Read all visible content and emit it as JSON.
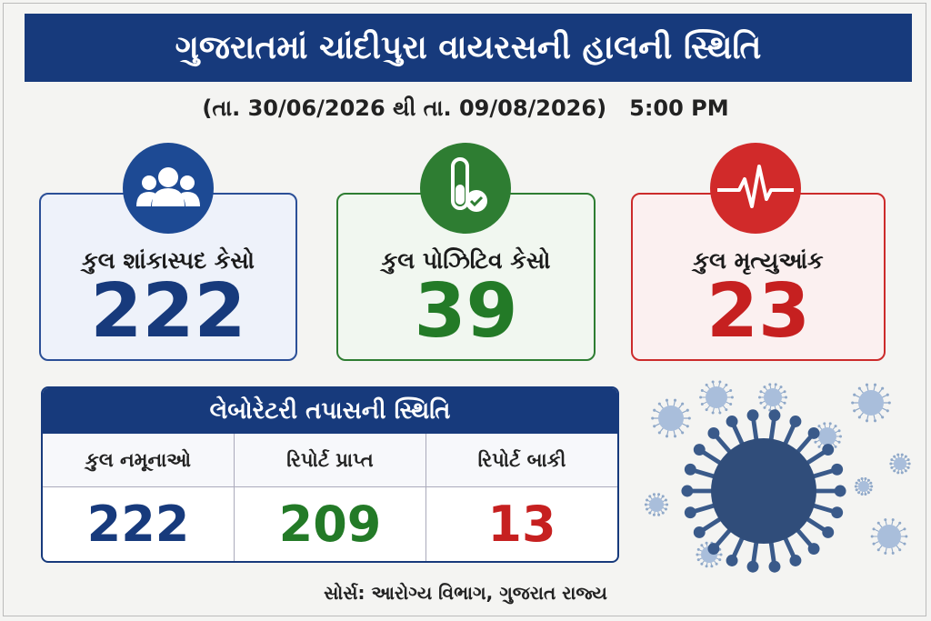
{
  "header": {
    "title": "ગુજરાતમાં ચાંદીપુરા વાયરસની હાલની સ્થિતિ",
    "date_range": "(તા. 30/06/2026 થી તા. 09/08/2026)",
    "time": "5:00 PM"
  },
  "cards": [
    {
      "label": "કુલ શાંકાસ્પદ કેસો",
      "value": 222
    },
    {
      "label": "કુલ પોઝિટિવ કેસો",
      "value": 39
    },
    {
      "label": "કુલ મૃત્યુઆંક",
      "value": 23
    }
  ],
  "lab": {
    "title": "લેબોરેટરી તપાસની સ્થિતિ",
    "columns": [
      "કુલ નમૂનાઓ",
      "રિપોર્ટ પ્રાપ્ત",
      "રિપોર્ટ બાકી"
    ],
    "values": [
      222,
      209,
      13
    ]
  },
  "footer": {
    "source": "સોર્સ: આરોગ્ય વિભાગ, ગુજરાત રાજ્ય"
  }
}
